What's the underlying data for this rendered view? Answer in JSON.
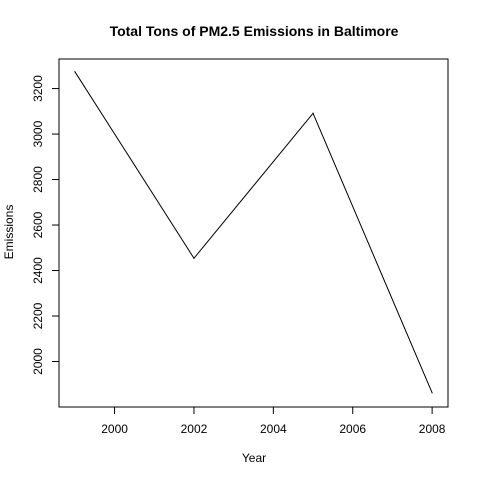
{
  "chart_data": {
    "type": "line",
    "title": "Total Tons of PM2.5 Emissions in Baltimore",
    "xlabel": "Year",
    "ylabel": "Emissions",
    "x": [
      1999,
      2002,
      2005,
      2008
    ],
    "series": [
      {
        "values": [
          3274.18,
          2453.92,
          3091.35,
          1862.28
        ]
      }
    ],
    "xlim": [
      1998.6,
      2008.4
    ],
    "ylim": [
      1800,
      3330
    ],
    "xticks": [
      2000,
      2002,
      2004,
      2006,
      2008
    ],
    "yticks": [
      2000,
      2200,
      2400,
      2600,
      2800,
      3000,
      3200
    ],
    "xtick_labels": [
      "2000",
      "2002",
      "2004",
      "2006",
      "2008"
    ],
    "ytick_labels": [
      "2000",
      "2200",
      "2400",
      "2600",
      "2800",
      "3000",
      "3200"
    ],
    "grid": false,
    "colors": {
      "line": "#000000",
      "frame": "#000000",
      "background": "#ffffff"
    }
  }
}
